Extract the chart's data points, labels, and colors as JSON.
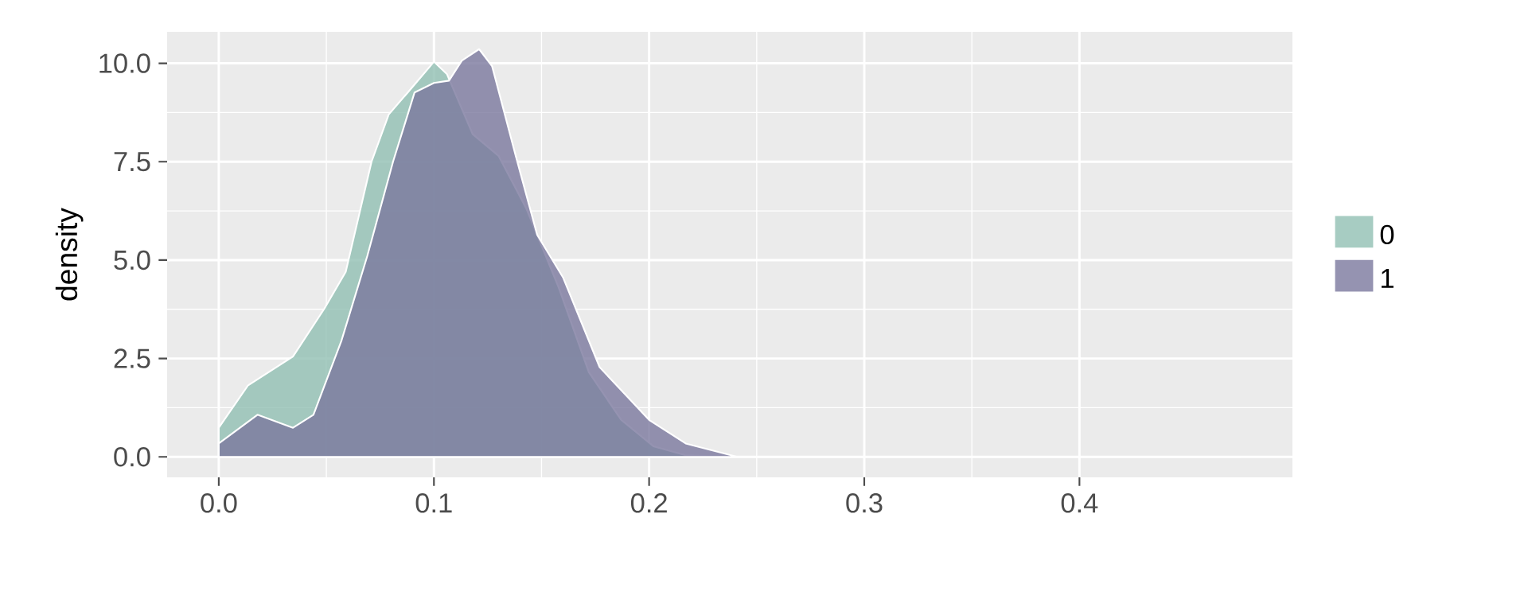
{
  "chart_data": {
    "type": "area",
    "ylabel": "density",
    "series": [
      {
        "name": "0",
        "color": "#91bfb3",
        "x": [
          0,
          0.0135,
          0.0345,
          0.049,
          0.059,
          0.071,
          0.079,
          0.091,
          0.1,
          0.106,
          0.118,
          0.13,
          0.143,
          0.158,
          0.172,
          0.187,
          0.202,
          0.217,
          0.236,
          0.3
        ],
        "values": [
          0.74,
          1.81,
          2.55,
          3.76,
          4.7,
          7.5,
          8.7,
          9.46,
          10.04,
          9.73,
          8.2,
          7.65,
          6.3,
          4.3,
          2.15,
          0.94,
          0.27,
          0.04,
          0,
          0
        ]
      },
      {
        "name": "1",
        "color": "#7a789e",
        "x": [
          0,
          0.018,
          0.0345,
          0.044,
          0.057,
          0.069,
          0.081,
          0.091,
          0.1,
          0.107,
          0.113,
          0.121,
          0.127,
          0.138,
          0.148,
          0.16,
          0.177,
          0.2,
          0.217,
          0.241,
          0.3,
          0.475
        ],
        "values": [
          0.34,
          1.07,
          0.74,
          1.07,
          2.95,
          5.1,
          7.5,
          9.26,
          9.5,
          9.56,
          10.07,
          10.36,
          9.93,
          7.65,
          5.64,
          4.56,
          2.28,
          0.94,
          0.34,
          0,
          0,
          0
        ]
      }
    ],
    "xlim": [
      -0.024,
      0.499
    ],
    "ylim": [
      -0.52,
      10.8
    ],
    "xticks": [
      {
        "value": 0,
        "label": "0.0"
      },
      0.1,
      0.2,
      0.3,
      0.4
    ],
    "yticks": [
      {
        "value": 0,
        "label": "0.0"
      },
      2.5,
      {
        "value": 5,
        "label": "5.0"
      },
      7.5,
      {
        "value": 10,
        "label": "10.0"
      }
    ],
    "grid": true,
    "legend": "right"
  }
}
